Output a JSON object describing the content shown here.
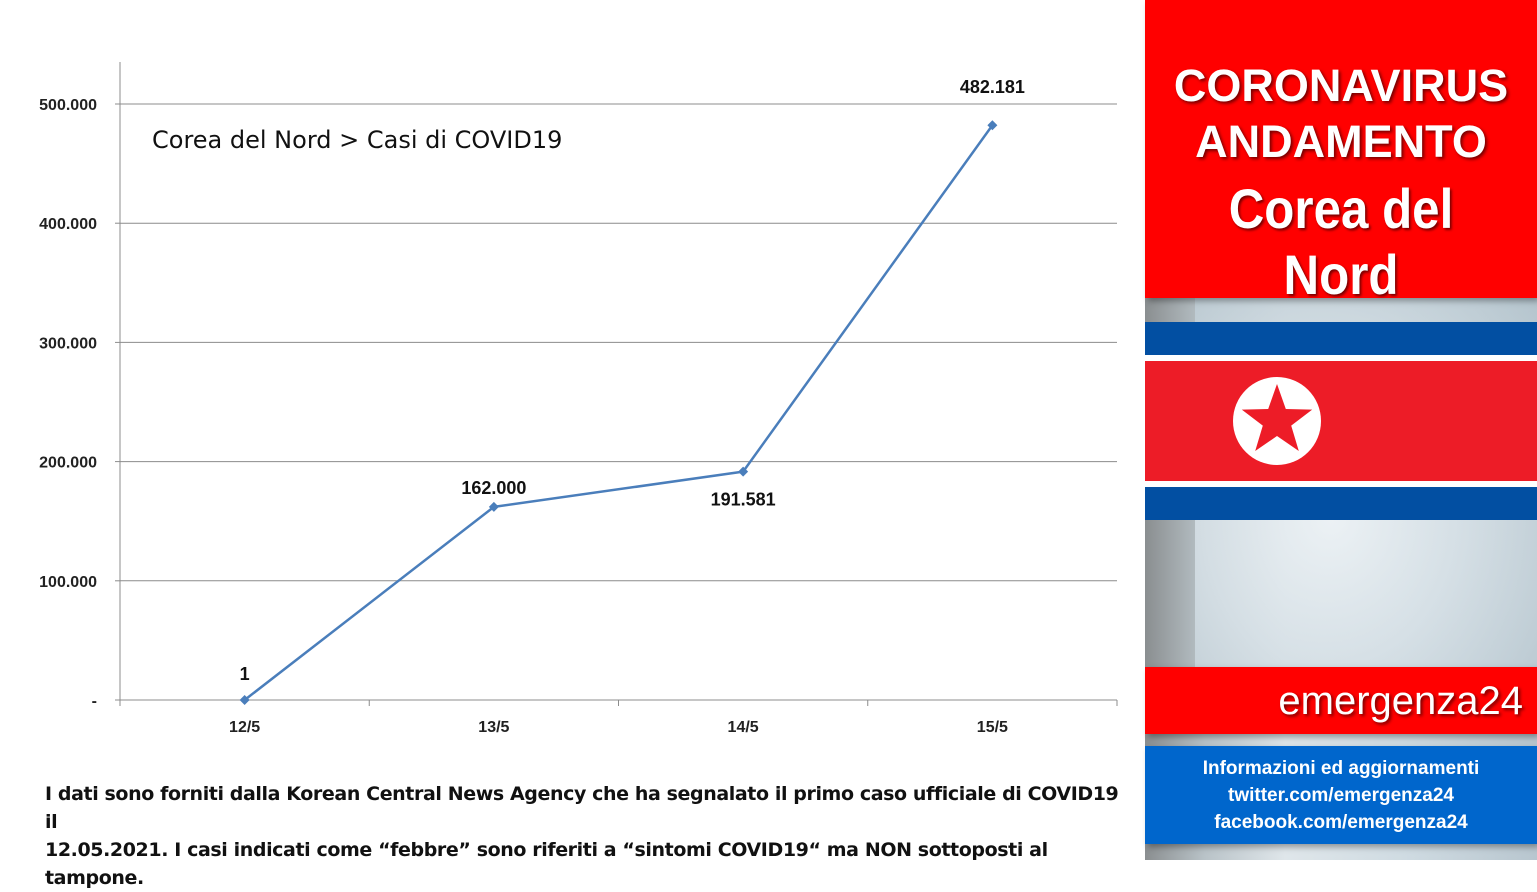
{
  "chart_data": {
    "type": "line",
    "title": "Corea del Nord > Casi di COVID19",
    "categories": [
      "12/5",
      "13/5",
      "14/5",
      "15/5"
    ],
    "values": [
      1,
      162000,
      191581,
      482181
    ],
    "data_labels": [
      "1",
      "162.000",
      "191.581",
      "482.181"
    ],
    "yticks": [
      0,
      100000,
      200000,
      300000,
      400000,
      500000
    ],
    "ytick_labels": [
      "-",
      "100.000",
      "200.000",
      "300.000",
      "400.000",
      "500.000"
    ],
    "ylim": [
      0,
      520000
    ],
    "grid": true,
    "series_color": "#4a7ebb"
  },
  "footnote": {
    "line1": "I dati sono forniti dalla Korean Central News Agency che ha segnalato il primo caso ufficiale di COVID19 il",
    "line2": "12.05.2021.  I casi indicati come “febbre” sono riferiti a “sintomi COVID19“ ma NON sottoposti al tampone."
  },
  "banner": {
    "line1": "CORONAVIRUS",
    "line2": "ANDAMENTO",
    "line3": "Corea del Nord"
  },
  "brand": "emergenza24",
  "info": {
    "line1": "Informazioni ed aggiornamenti",
    "line2": "twitter.com/emergenza24",
    "line3": "facebook.com/emergenza24"
  },
  "colors": {
    "banner_red": "#ff0000",
    "info_blue": "#0066cc",
    "flag_blue": "#024fa2",
    "flag_red": "#ed1c27"
  }
}
